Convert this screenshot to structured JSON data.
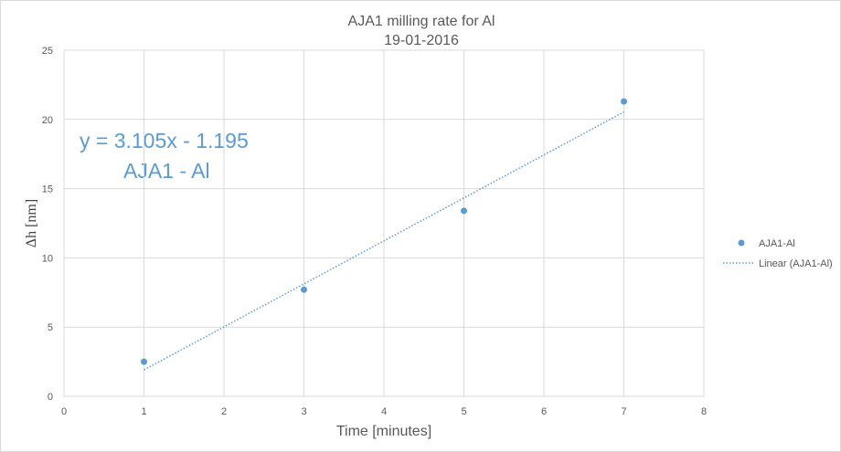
{
  "chart_data": {
    "type": "scatter",
    "title": "AJA1 milling rate for Al",
    "subtitle": "19-01-2016",
    "xlabel": "Time [minutes]",
    "ylabel": "Δh [nm]",
    "xlim": [
      0,
      8
    ],
    "ylim": [
      0,
      25
    ],
    "xticks": [
      0,
      1,
      2,
      3,
      4,
      5,
      6,
      7,
      8
    ],
    "yticks": [
      0,
      5,
      10,
      15,
      20,
      25
    ],
    "grid": true,
    "legend_position": "right",
    "series": [
      {
        "name": "AJA1-Al",
        "x": [
          1,
          3,
          5,
          7
        ],
        "y": [
          2.5,
          7.7,
          13.4,
          21.3
        ],
        "color": "#5b9bd5"
      }
    ],
    "trendline": {
      "name": "Linear (AJA1-Al)",
      "type": "linear",
      "slope": 3.105,
      "intercept": -1.195,
      "x_range": [
        1,
        7
      ],
      "color": "#5b9bd5"
    },
    "annotations": [
      "y = 3.105x - 1.195",
      "AJA1 - Al"
    ]
  }
}
